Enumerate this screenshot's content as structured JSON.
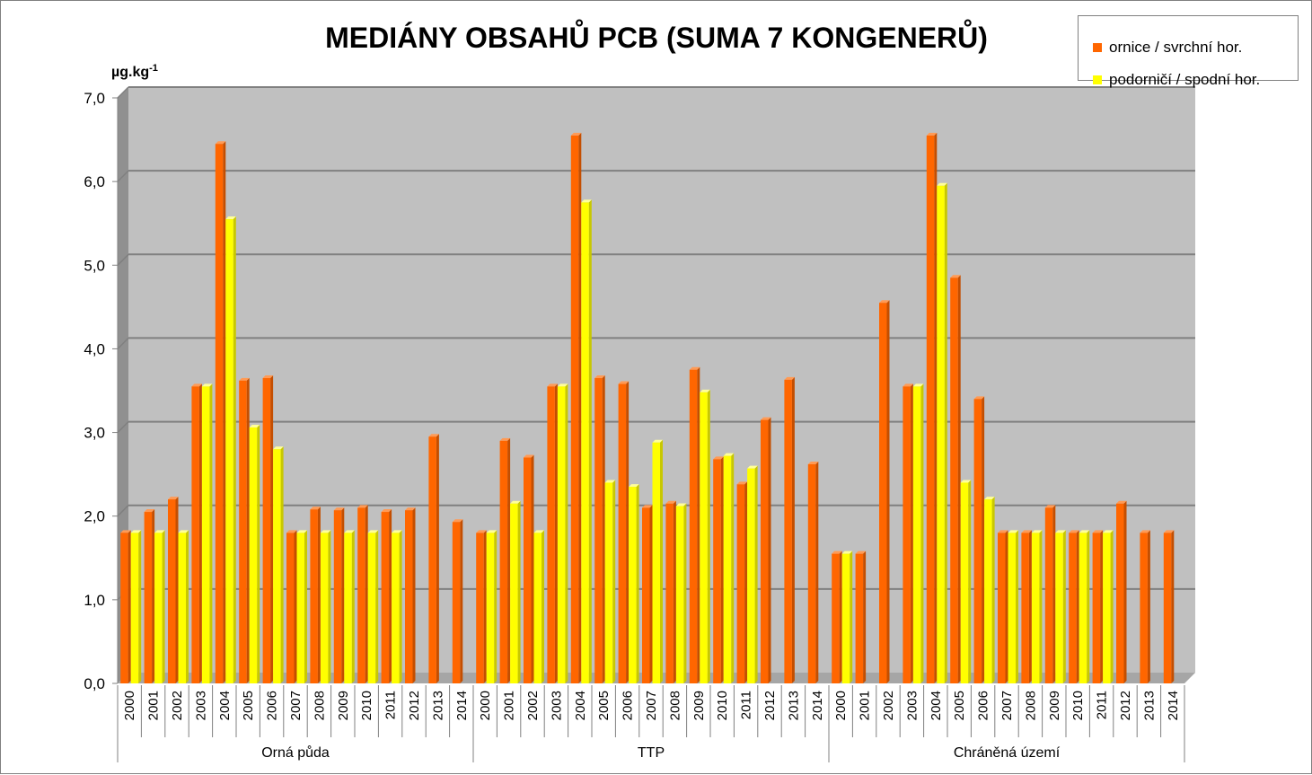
{
  "chart_data": {
    "type": "bar",
    "title": "MEDIÁNY OBSAHŮ PCB (SUMA 7 KONGENERŮ)",
    "ylabel": "µg.kg",
    "ylabel_sup": "-1",
    "xlabel": "",
    "ylim": [
      0,
      7
    ],
    "yticks": [
      "0,0",
      "1,0",
      "2,0",
      "3,0",
      "4,0",
      "5,0",
      "6,0",
      "7,0"
    ],
    "grid": true,
    "legend_position": "top-right",
    "groups": [
      {
        "name": "Orná půda",
        "categories": [
          "2000",
          "2001",
          "2002",
          "2003",
          "2004",
          "2005",
          "2006",
          "2007",
          "2008",
          "2009",
          "2010",
          "2011",
          "2012",
          "2013",
          "2014"
        ],
        "series": [
          {
            "name": "ornice / svrchní hor.",
            "values": [
              1.8,
              2.05,
              2.2,
              3.55,
              6.45,
              3.62,
              3.65,
              1.8,
              2.08,
              2.07,
              2.1,
              2.05,
              2.07,
              2.95,
              1.93
            ]
          },
          {
            "name": "podorničí / spodní hor.",
            "values": [
              1.8,
              1.8,
              1.8,
              3.55,
              5.55,
              3.06,
              2.8,
              1.8,
              1.8,
              1.8,
              1.8,
              1.8,
              null,
              null,
              null
            ]
          }
        ]
      },
      {
        "name": "TTP",
        "categories": [
          "2000",
          "2001",
          "2002",
          "2003",
          "2004",
          "2005",
          "2006",
          "2007",
          "2008",
          "2009",
          "2010",
          "2011",
          "2012",
          "2013",
          "2014"
        ],
        "series": [
          {
            "name": "ornice / svrchní hor.",
            "values": [
              1.8,
              2.9,
              2.7,
              3.55,
              6.55,
              3.65,
              3.58,
              2.1,
              2.15,
              3.75,
              2.68,
              2.38,
              3.15,
              3.63,
              2.62
            ]
          },
          {
            "name": "podorničí / spodní hor.",
            "values": [
              1.8,
              2.15,
              1.8,
              3.55,
              5.75,
              2.4,
              2.35,
              2.88,
              2.12,
              3.48,
              2.72,
              2.57,
              null,
              null,
              null
            ]
          }
        ]
      },
      {
        "name": "Chráněná území",
        "categories": [
          "2000",
          "2001",
          "2002",
          "2003",
          "2004",
          "2005",
          "2006",
          "2007",
          "2008",
          "2009",
          "2010",
          "2011",
          "2012",
          "2013",
          "2014"
        ],
        "series": [
          {
            "name": "ornice / svrchní hor.",
            "values": [
              1.55,
              1.55,
              4.55,
              3.55,
              6.55,
              4.85,
              3.4,
              1.8,
              1.8,
              2.1,
              1.8,
              1.8,
              2.15,
              1.8,
              1.8
            ]
          },
          {
            "name": "podorničí / spodní hor.",
            "values": [
              1.55,
              null,
              null,
              3.55,
              5.95,
              2.4,
              2.2,
              1.8,
              1.8,
              1.8,
              1.8,
              1.8,
              null,
              null,
              null
            ]
          }
        ]
      }
    ]
  },
  "colors": {
    "series1": "#ff6600",
    "series2": "#ffff00",
    "plot_back": "#c0c0c0",
    "plot_side": "#909090",
    "gridline": "#808080"
  }
}
